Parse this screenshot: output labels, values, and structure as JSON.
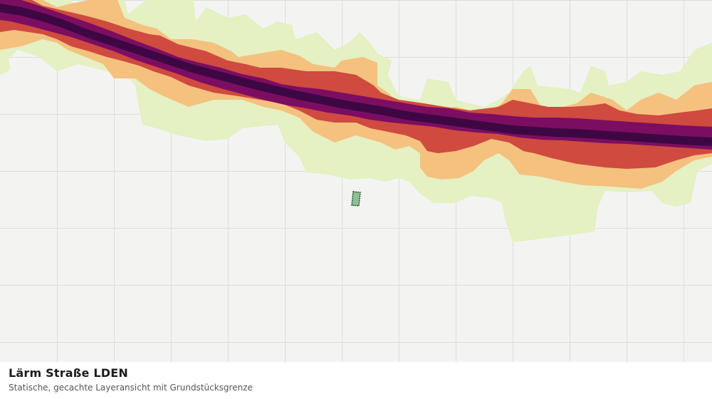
{
  "map": {
    "layer": "Lärm Straße LDEN",
    "noise_band_colors": {
      "lowest": "#e5f0c3",
      "low": "#f4c17f",
      "medium": "#cf4a3f",
      "high": "#7c0e61",
      "highest": "#3d0744"
    },
    "parcel_color": "#8fbf94",
    "parcel_border_color": "#1f4a2a",
    "background_color": "#f3f4f2",
    "grid_color": "#dcdedb"
  },
  "footer": {
    "title": "Lärm Straße LDEN",
    "subtitle": "Statische, gecachte Layeransicht mit Grundstücksgrenze"
  }
}
